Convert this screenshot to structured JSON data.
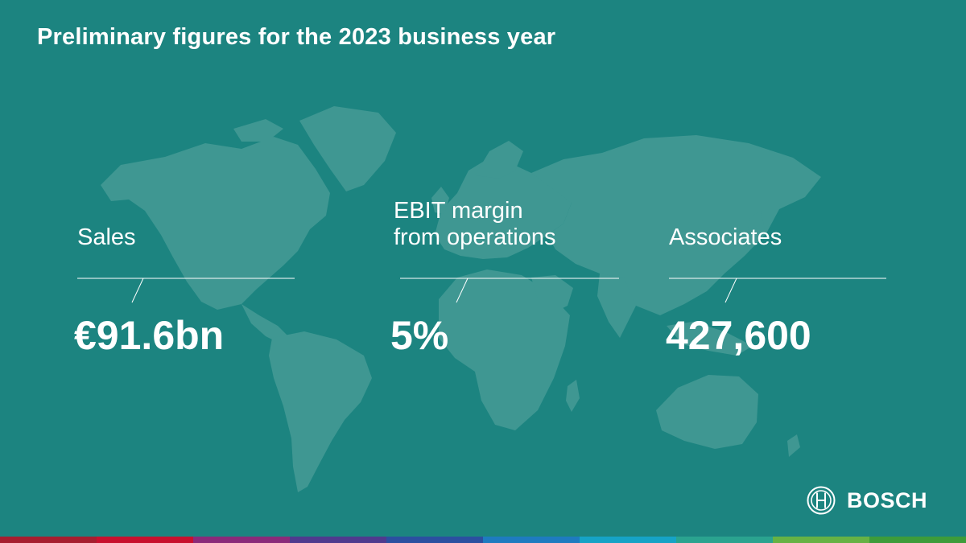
{
  "title": "Preliminary figures for the 2023 business year",
  "kpis": [
    {
      "label": "Sales",
      "value": "€91.6bn"
    },
    {
      "label": "EBIT margin\nfrom operations",
      "value": "5%"
    },
    {
      "label": "Associates",
      "value": "427,600"
    }
  ],
  "brand": {
    "name": "BOSCH",
    "logo_icon": "bosch-armature-icon"
  },
  "colors": {
    "background": "#1c8480",
    "map": "#3f9792",
    "text": "#ffffff",
    "stripe": [
      "#a61e2f",
      "#c8102e",
      "#8a2a7a",
      "#4f3a8e",
      "#2b4fa0",
      "#1e7bc0",
      "#16a3c6",
      "#2aa38f",
      "#66b244",
      "#3d9c3a"
    ]
  }
}
